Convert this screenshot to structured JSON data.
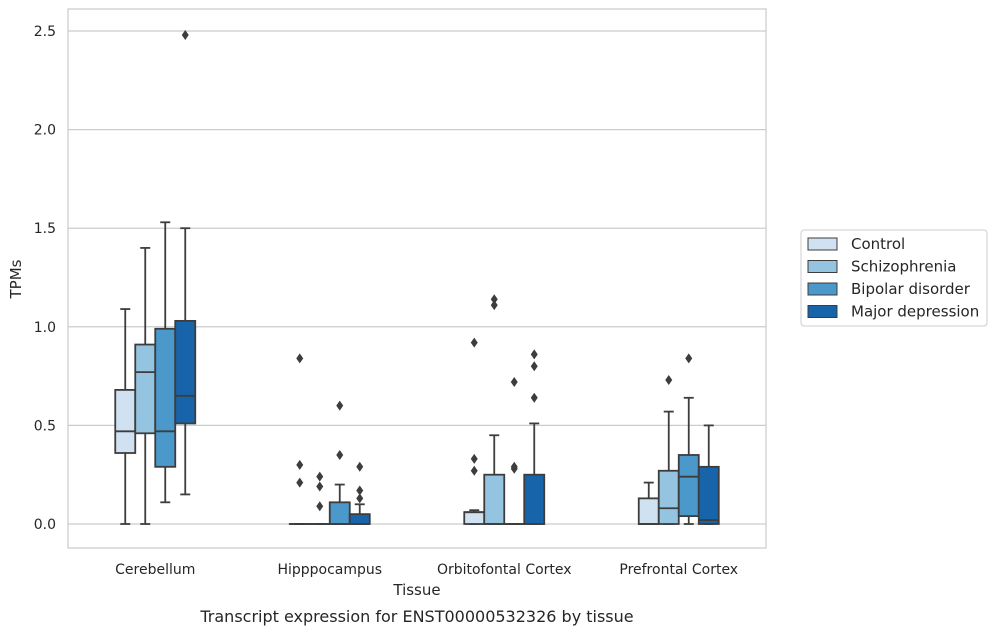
{
  "caption": "Transcript expression for ENST00000532326 by tissue",
  "chart_data": {
    "type": "box",
    "xlabel": "Tissue",
    "ylabel": "TPMs",
    "ylim": [
      -0.12,
      2.62
    ],
    "yticks": [
      "0.0",
      "0.5",
      "1.0",
      "1.5",
      "2.0",
      "2.5"
    ],
    "grid": "horizontal",
    "legend_position": "right",
    "categories": [
      "Cerebellum",
      "Hipppocampus",
      "Orbitofontal Cortex",
      "Prefrontal Cortex"
    ],
    "series": [
      {
        "name": "Control",
        "color": "#d0e1f2",
        "boxes": [
          {
            "whisker_low": 0.0,
            "q1": 0.36,
            "median": 0.47,
            "q3": 0.68,
            "whisker_high": 1.09,
            "outliers": []
          },
          {
            "whisker_low": 0.0,
            "q1": 0.0,
            "median": 0.0,
            "q3": 0.0,
            "whisker_high": 0.0,
            "outliers": [
              0.84,
              0.3,
              0.21
            ]
          },
          {
            "whisker_low": 0.0,
            "q1": 0.0,
            "median": 0.06,
            "q3": 0.06,
            "whisker_high": 0.07,
            "outliers": [
              0.92,
              0.33,
              0.27
            ]
          },
          {
            "whisker_low": 0.0,
            "q1": 0.0,
            "median": 0.0,
            "q3": 0.13,
            "whisker_high": 0.21,
            "outliers": []
          }
        ]
      },
      {
        "name": "Schizophrenia",
        "color": "#94c4df",
        "boxes": [
          {
            "whisker_low": 0.0,
            "q1": 0.46,
            "median": 0.77,
            "q3": 0.91,
            "whisker_high": 1.4,
            "outliers": []
          },
          {
            "whisker_low": 0.0,
            "q1": 0.0,
            "median": 0.0,
            "q3": 0.0,
            "whisker_high": 0.0,
            "outliers": [
              0.24,
              0.19,
              0.09
            ]
          },
          {
            "whisker_low": 0.0,
            "q1": 0.0,
            "median": 0.0,
            "q3": 0.25,
            "whisker_high": 0.45,
            "outliers": [
              1.14,
              1.11
            ]
          },
          {
            "whisker_low": 0.0,
            "q1": 0.0,
            "median": 0.08,
            "q3": 0.27,
            "whisker_high": 0.57,
            "outliers": [
              0.73
            ]
          }
        ]
      },
      {
        "name": "Bipolar disorder",
        "color": "#4b98ca",
        "boxes": [
          {
            "whisker_low": 0.11,
            "q1": 0.29,
            "median": 0.47,
            "q3": 0.99,
            "whisker_high": 1.53,
            "outliers": []
          },
          {
            "whisker_low": 0.0,
            "q1": 0.0,
            "median": 0.0,
            "q3": 0.11,
            "whisker_high": 0.2,
            "outliers": [
              0.6,
              0.35
            ]
          },
          {
            "whisker_low": 0.0,
            "q1": 0.0,
            "median": 0.0,
            "q3": 0.0,
            "whisker_high": 0.0,
            "outliers": [
              0.72,
              0.29,
              0.28
            ]
          },
          {
            "whisker_low": 0.0,
            "q1": 0.04,
            "median": 0.24,
            "q3": 0.35,
            "whisker_high": 0.64,
            "outliers": [
              0.84
            ]
          }
        ]
      },
      {
        "name": "Major depression",
        "color": "#1864aa",
        "boxes": [
          {
            "whisker_low": 0.15,
            "q1": 0.51,
            "median": 0.65,
            "q3": 1.03,
            "whisker_high": 1.5,
            "outliers": [
              2.48
            ]
          },
          {
            "whisker_low": 0.0,
            "q1": 0.0,
            "median": 0.0,
            "q3": 0.05,
            "whisker_high": 0.1,
            "outliers": [
              0.29,
              0.17,
              0.13
            ]
          },
          {
            "whisker_low": 0.0,
            "q1": 0.0,
            "median": 0.0,
            "q3": 0.25,
            "whisker_high": 0.51,
            "outliers": [
              0.86,
              0.8,
              0.64
            ]
          },
          {
            "whisker_low": 0.0,
            "q1": 0.0,
            "median": 0.02,
            "q3": 0.29,
            "whisker_high": 0.5,
            "outliers": []
          }
        ]
      }
    ]
  }
}
